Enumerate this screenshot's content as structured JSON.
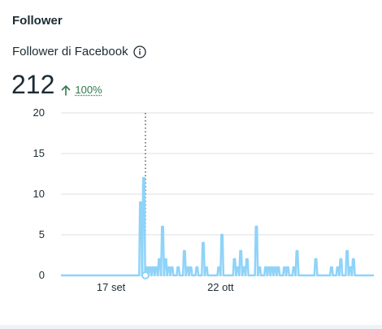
{
  "card": {
    "title": "Follower",
    "metric_label": "Follower di Facebook",
    "total": "212",
    "change": "100%"
  },
  "colors": {
    "line": "#8fd3f9",
    "grid": "#dcdfe3",
    "trend": "#2d7a4f"
  },
  "icons": {
    "info": "info-circle-icon",
    "trend": "arrow-up-icon"
  },
  "chart_data": {
    "type": "line",
    "x_unit": "day",
    "x_range": [
      0,
      100
    ],
    "ylim": [
      0,
      20
    ],
    "yticks": [
      0,
      5,
      10,
      15,
      20
    ],
    "xticks": [
      {
        "x": 16,
        "label": "17 set"
      },
      {
        "x": 51,
        "label": "22 ott"
      }
    ],
    "marker_x": 27,
    "series": [
      {
        "x": [
          0,
          1,
          2,
          3,
          4,
          5,
          6,
          7,
          8,
          9,
          10,
          11,
          12,
          13,
          14,
          15,
          16,
          17,
          18,
          19,
          20,
          21,
          22,
          23,
          24,
          25,
          26,
          27,
          28,
          29,
          30,
          31,
          32,
          33,
          34,
          35,
          36,
          37,
          38,
          39,
          40,
          41,
          42,
          43,
          44,
          45,
          46,
          47,
          48,
          49,
          50,
          51,
          52,
          53,
          54,
          55,
          56,
          57,
          58,
          59,
          60,
          61,
          62,
          63,
          64,
          65,
          66,
          67,
          68,
          69,
          70,
          71,
          72,
          73,
          74,
          75,
          76,
          77,
          78,
          79,
          80,
          81,
          82,
          83,
          84,
          85,
          86,
          87,
          88,
          89,
          90,
          91,
          92,
          93,
          94,
          95,
          96,
          97,
          98,
          99,
          100
        ],
        "y": [
          0,
          0,
          0,
          0,
          0,
          0,
          0,
          0,
          0,
          0,
          0,
          0,
          0,
          0,
          0,
          0,
          0,
          0,
          0,
          0,
          0,
          0,
          0,
          0,
          0,
          9,
          12,
          1,
          1,
          1,
          1,
          2,
          6,
          2,
          1,
          1,
          0,
          1,
          0,
          3,
          1,
          1,
          0,
          1,
          0,
          4,
          1,
          0,
          0,
          0,
          1,
          5,
          0,
          0,
          0,
          2,
          1,
          3,
          1,
          2,
          0,
          0,
          6,
          1,
          0,
          1,
          1,
          1,
          1,
          1,
          0,
          1,
          1,
          0,
          1,
          3,
          0,
          0,
          0,
          0,
          0,
          2,
          0,
          0,
          0,
          0,
          1,
          0,
          1,
          2,
          0,
          3,
          1,
          2,
          0,
          0,
          0,
          0,
          0,
          0,
          0
        ]
      }
    ]
  }
}
